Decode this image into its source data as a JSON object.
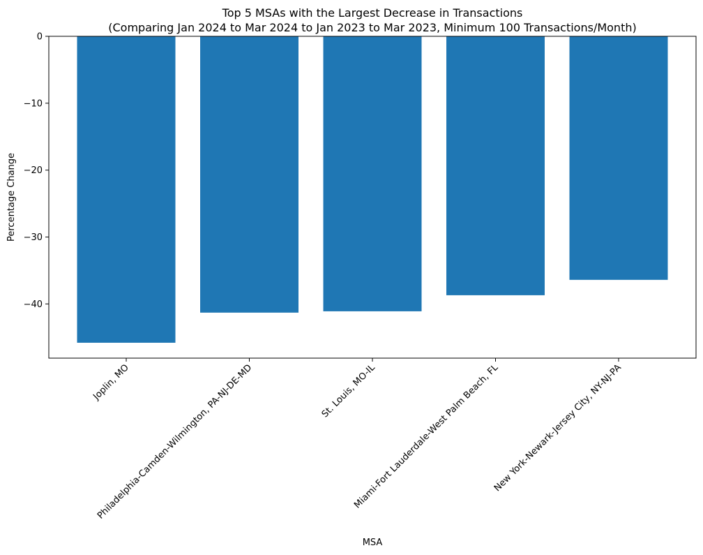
{
  "chart_data": {
    "type": "bar",
    "title": "Top 5 MSAs with the Largest Decrease in Transactions",
    "subtitle": "(Comparing Jan 2024 to Mar 2024 to Jan 2023 to Mar 2023, Minimum 100 Transactions/Month)",
    "xlabel": "MSA",
    "ylabel": "Percentage Change",
    "categories": [
      "Joplin, MO",
      "Philadelphia-Camden-Wilmington, PA-NJ-DE-MD",
      "St. Louis, MO-IL",
      "Miami-Fort Lauderdale-West Palm Beach, FL",
      "New York-Newark-Jersey City, NY-NJ-PA"
    ],
    "values": [
      -45.8,
      -41.3,
      -41.1,
      -38.7,
      -36.4
    ],
    "ylim": [
      -48.1,
      0
    ],
    "yticks": [
      "0",
      "−10",
      "−20",
      "−30",
      "−40"
    ],
    "ytick_values": [
      0,
      -10,
      -20,
      -30,
      -40
    ],
    "bar_color": "#1f77b4",
    "grid": false,
    "legend": "none"
  }
}
